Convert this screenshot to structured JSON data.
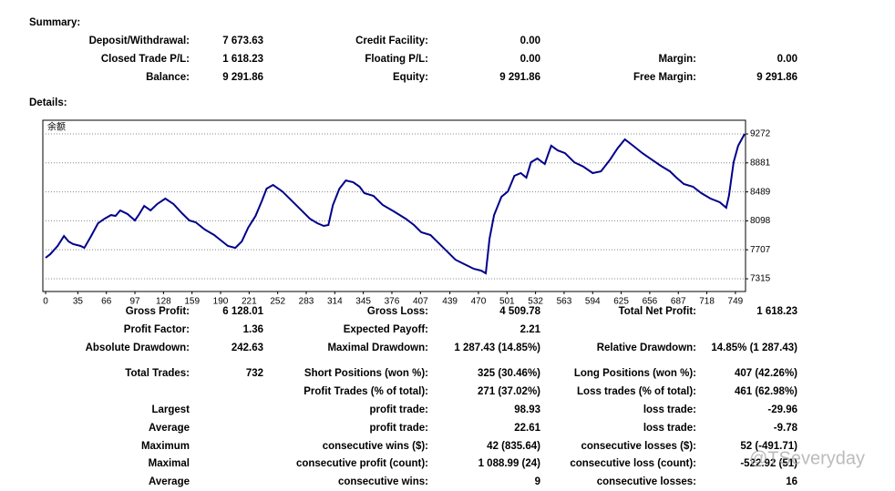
{
  "summary": {
    "title": "Summary:",
    "rows": [
      [
        "Deposit/Withdrawal:",
        "7 673.63",
        "Credit Facility:",
        "0.00",
        null,
        null
      ],
      [
        "Closed Trade P/L:",
        "1 618.23",
        "Floating P/L:",
        "0.00",
        "Margin:",
        "0.00"
      ],
      [
        "Balance:",
        "9 291.86",
        "Equity:",
        "9 291.86",
        "Free Margin:",
        "9 291.86"
      ]
    ]
  },
  "details_title": "Details:",
  "chart_data": {
    "type": "line",
    "grid": true,
    "legend": "top-left",
    "series": [
      {
        "name": "余额",
        "color": "#00008b",
        "x": [
          0,
          5,
          13,
          20,
          25,
          30,
          38,
          42,
          49,
          57,
          64,
          71,
          76,
          81,
          89,
          97,
          101,
          107,
          114,
          121,
          130,
          139,
          148,
          156,
          163,
          173,
          183,
          188,
          198,
          206,
          213,
          220,
          228,
          235,
          240,
          247,
          257,
          267,
          277,
          287,
          295,
          302,
          307,
          312,
          319,
          326,
          334,
          341,
          346,
          356,
          366,
          378,
          391,
          400,
          408,
          418,
          425,
          435,
          445,
          455,
          465,
          473,
          478,
          482,
          487,
          495,
          502,
          509,
          516,
          522,
          527,
          534,
          542,
          549,
          556,
          564,
          574,
          584,
          594,
          603,
          613,
          621,
          629,
          638,
          648,
          658,
          668,
          678,
          685,
          693,
          703,
          712,
          722,
          732,
          739,
          742,
          747,
          752,
          759
        ],
        "values": [
          7598,
          7647,
          7758,
          7893,
          7819,
          7783,
          7758,
          7733,
          7881,
          8066,
          8127,
          8176,
          8164,
          8238,
          8189,
          8103,
          8176,
          8299,
          8238,
          8324,
          8398,
          8324,
          8201,
          8103,
          8078,
          7980,
          7906,
          7857,
          7758,
          7733,
          7819,
          8004,
          8164,
          8373,
          8533,
          8583,
          8496,
          8373,
          8250,
          8127,
          8066,
          8029,
          8041,
          8312,
          8533,
          8644,
          8620,
          8558,
          8472,
          8435,
          8312,
          8226,
          8127,
          8041,
          7943,
          7906,
          7819,
          7696,
          7573,
          7511,
          7450,
          7425,
          7389,
          7856,
          8176,
          8423,
          8496,
          8706,
          8743,
          8681,
          8890,
          8940,
          8866,
          9112,
          9050,
          9013,
          8890,
          8829,
          8743,
          8767,
          8927,
          9075,
          9198,
          9112,
          9013,
          8927,
          8841,
          8767,
          8681,
          8595,
          8558,
          8472,
          8398,
          8349,
          8275,
          8435,
          8890,
          9112,
          9272
        ]
      }
    ],
    "xlim": [
      -3,
      760
    ],
    "xticks": [
      0,
      35,
      66,
      97,
      128,
      159,
      190,
      221,
      252,
      283,
      314,
      345,
      376,
      407,
      439,
      470,
      501,
      532,
      563,
      594,
      625,
      656,
      687,
      718,
      749
    ],
    "ylim": [
      7143,
      9457
    ],
    "yticks": [
      9272,
      8881,
      8489,
      8098,
      7707,
      7315
    ]
  },
  "stats": {
    "rows": [
      [
        "Gross Profit:",
        "6 128.01",
        "Gross Loss:",
        "4 509.78",
        "Total Net Profit:",
        "1 618.23"
      ],
      [
        "Profit Factor:",
        "1.36",
        "Expected Payoff:",
        "2.21",
        null,
        null
      ],
      [
        "Absolute Drawdown:",
        "242.63",
        "Maximal Drawdown:",
        "1 287.43 (14.85%)",
        "Relative Drawdown:",
        "14.85% (1 287.43)"
      ],
      [
        "Total Trades:",
        "732",
        "Short Positions (won %):",
        "325 (30.46%)",
        "Long Positions (won %):",
        "407 (42.26%)"
      ],
      [
        null,
        null,
        "Profit Trades (% of total):",
        "271 (37.02%)",
        "Loss trades (% of total):",
        "461 (62.98%)"
      ],
      [
        "Largest",
        null,
        "profit trade:",
        "98.93",
        "loss trade:",
        "-29.96"
      ],
      [
        "Average",
        null,
        "profit trade:",
        "22.61",
        "loss trade:",
        "-9.78"
      ],
      [
        "Maximum",
        null,
        "consecutive wins ($):",
        "42 (835.64)",
        "consecutive losses ($):",
        "52 (-491.71)"
      ],
      [
        "Maximal",
        null,
        "consecutive profit (count):",
        "1 088.99 (24)",
        "consecutive loss (count):",
        "-522.92 (51)"
      ],
      [
        "Average",
        null,
        "consecutive wins:",
        "9",
        "consecutive losses:",
        "16"
      ]
    ]
  },
  "watermark": "@TSeveryday"
}
